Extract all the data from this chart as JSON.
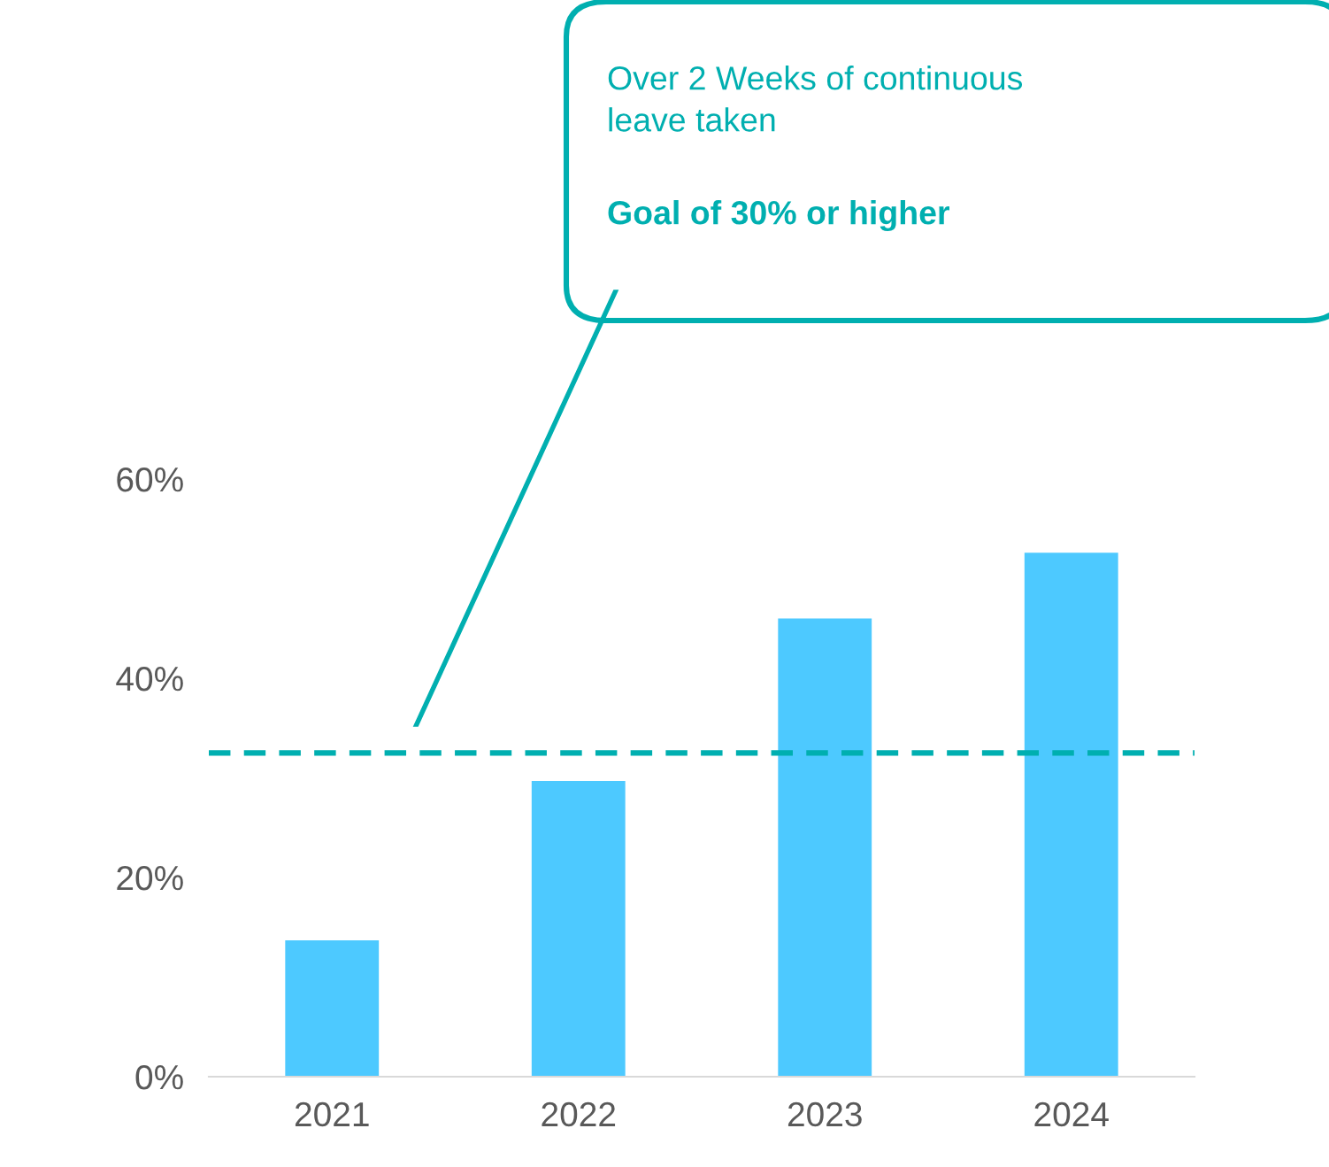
{
  "chart_data": {
    "type": "bar",
    "categories": [
      "2021",
      "2022",
      "2023",
      "2024"
    ],
    "values": [
      13.7,
      29.7,
      46.0,
      52.6
    ],
    "color": "#4dc9ff",
    "ylim": [
      0,
      60
    ],
    "yticks": [
      {
        "value": 0,
        "label": "0%"
      },
      {
        "value": 20,
        "label": "20%"
      },
      {
        "value": 40,
        "label": "40%"
      },
      {
        "value": 60,
        "label": "60%"
      }
    ],
    "grid": false,
    "ref_lines": [
      {
        "axis": "y",
        "value": 32.5,
        "color": "#00afb0",
        "line_style": "dashed"
      }
    ],
    "annotations": [
      "Over 2 Weeks of continuous\nleave taken",
      "Goal of 30% or higher"
    ]
  }
}
